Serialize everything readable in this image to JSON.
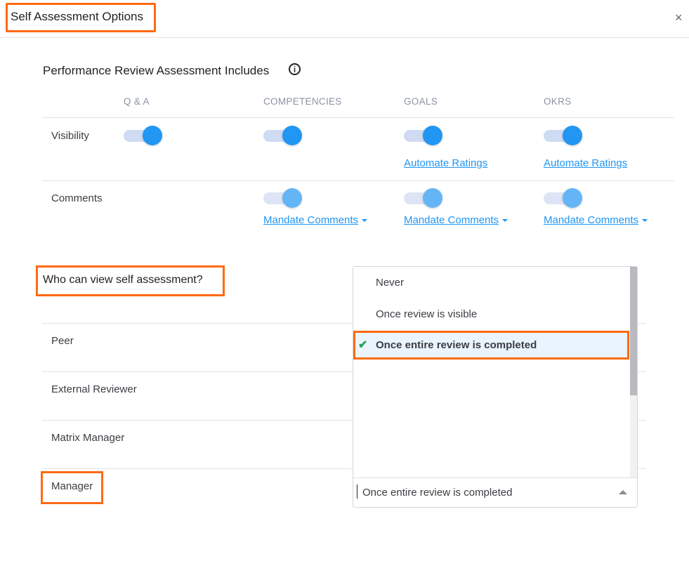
{
  "dialog": {
    "title": "Self Assessment Options",
    "close_label": "×"
  },
  "includes": {
    "title": "Performance Review Assessment Includes",
    "info_icon": "i",
    "columns": [
      "Q & A",
      "COMPETENCIES",
      "GOALS",
      "OKRS"
    ],
    "visibility": {
      "label": "Visibility",
      "toggles": [
        true,
        true,
        true,
        true
      ],
      "automate_ratings": "Automate Ratings"
    },
    "comments": {
      "label": "Comments",
      "toggles": [
        null,
        true,
        true,
        true
      ],
      "mandate_comments": "Mandate Comments"
    }
  },
  "who": {
    "title": "Who can view self assessment?",
    "roles": [
      "Peer",
      "External Reviewer",
      "Matrix Manager",
      "Manager"
    ]
  },
  "dropdown": {
    "options": [
      "Never",
      "Once review is visible",
      "Once entire review is completed"
    ],
    "selected_index": 2,
    "value": "Once entire review is completed",
    "check_icon": "✔"
  },
  "colors": {
    "accent": "#2196f3",
    "highlight": "#ff6a13",
    "check": "#20a35a"
  }
}
